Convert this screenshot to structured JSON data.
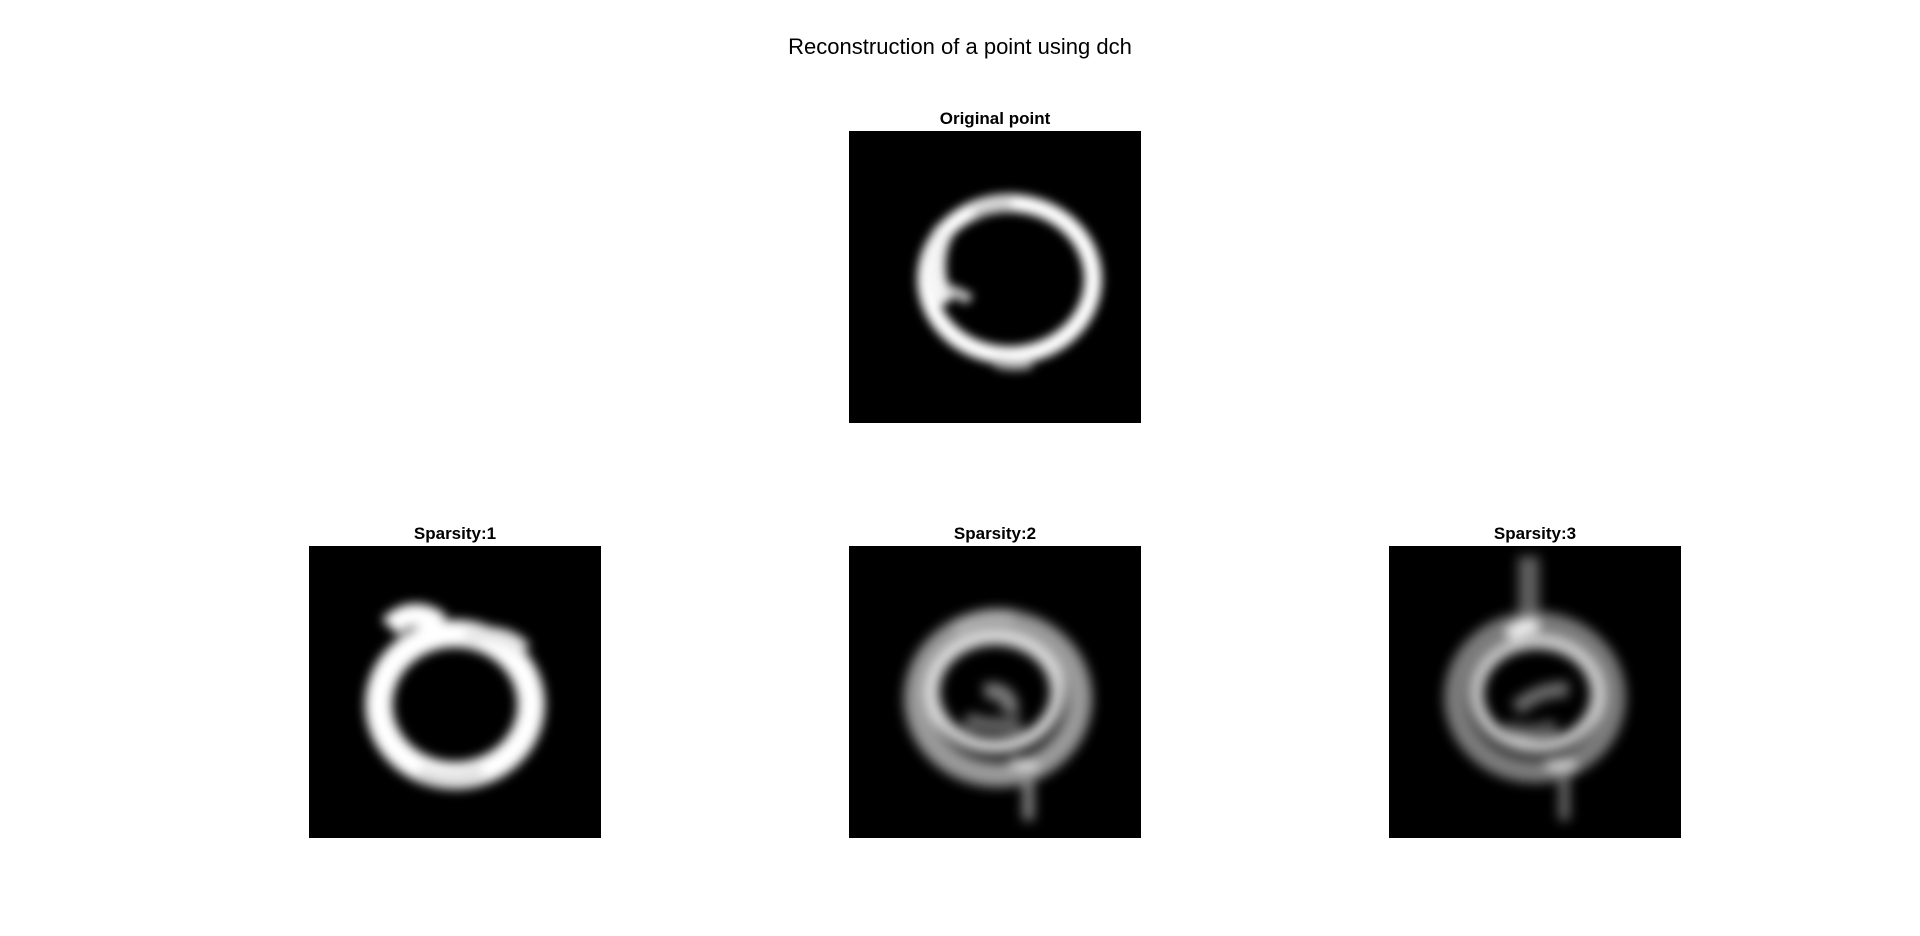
{
  "figure": {
    "title": "Reconstruction of a point using dch"
  },
  "panels": [
    {
      "id": "original",
      "title": "Original point"
    },
    {
      "id": "s1",
      "title": "Sparsity:1"
    },
    {
      "id": "s2",
      "title": "Sparsity:2"
    },
    {
      "id": "s3",
      "title": "Sparsity:3"
    }
  ]
}
